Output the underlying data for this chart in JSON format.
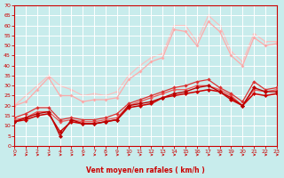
{
  "bg_color": "#c8ecec",
  "grid_color": "#ffffff",
  "xlabel": "Vent moyen/en rafales ( km/h )",
  "xlabel_color": "#cc0000",
  "tick_color": "#cc0000",
  "ylim": [
    0,
    70
  ],
  "xlim": [
    0,
    23
  ],
  "yticks": [
    0,
    5,
    10,
    15,
    20,
    25,
    30,
    35,
    40,
    45,
    50,
    55,
    60,
    65,
    70
  ],
  "xticks": [
    0,
    1,
    2,
    3,
    4,
    5,
    6,
    7,
    8,
    9,
    10,
    11,
    12,
    13,
    14,
    15,
    16,
    17,
    18,
    19,
    20,
    21,
    22,
    23
  ],
  "lines": [
    {
      "x": [
        0,
        1,
        2,
        3,
        4,
        5,
        6,
        7,
        8,
        9,
        10,
        11,
        12,
        13,
        14,
        15,
        16,
        17,
        18,
        19,
        20,
        21,
        22,
        23
      ],
      "y": [
        20,
        25,
        30,
        35,
        30,
        28,
        25,
        26,
        25,
        27,
        35,
        40,
        44,
        46,
        60,
        60,
        52,
        65,
        60,
        47,
        42,
        56,
        52,
        52
      ],
      "color": "#ffbbbb",
      "linewidth": 0.8,
      "markersize": 2.0,
      "zorder": 1
    },
    {
      "x": [
        0,
        1,
        2,
        3,
        4,
        5,
        6,
        7,
        8,
        9,
        10,
        11,
        12,
        13,
        14,
        15,
        16,
        17,
        18,
        19,
        20,
        21,
        22,
        23
      ],
      "y": [
        20,
        22,
        28,
        34,
        25,
        25,
        22,
        23,
        23,
        24,
        33,
        37,
        42,
        44,
        58,
        57,
        50,
        62,
        57,
        45,
        40,
        54,
        50,
        51
      ],
      "color": "#ffaaaa",
      "linewidth": 0.9,
      "markersize": 2.0,
      "zorder": 2
    },
    {
      "x": [
        0,
        1,
        2,
        3,
        4,
        5,
        6,
        7,
        8,
        9,
        10,
        11,
        12,
        13,
        14,
        15,
        16,
        17,
        18,
        19,
        20,
        21,
        22,
        23
      ],
      "y": [
        13,
        14,
        17,
        17,
        12,
        13,
        12,
        12,
        13,
        14,
        20,
        22,
        24,
        26,
        28,
        28,
        30,
        30,
        28,
        25,
        20,
        28,
        27,
        28
      ],
      "color": "#ee5555",
      "linewidth": 0.9,
      "markersize": 2.2,
      "zorder": 3
    },
    {
      "x": [
        0,
        1,
        2,
        3,
        4,
        5,
        6,
        7,
        8,
        9,
        10,
        11,
        12,
        13,
        14,
        15,
        16,
        17,
        18,
        19,
        20,
        21,
        22,
        23
      ],
      "y": [
        14,
        16,
        19,
        19,
        13,
        14,
        13,
        13,
        14,
        16,
        21,
        23,
        25,
        27,
        29,
        30,
        32,
        33,
        29,
        26,
        22,
        32,
        28,
        29
      ],
      "color": "#dd3333",
      "linewidth": 0.9,
      "markersize": 2.2,
      "zorder": 4
    },
    {
      "x": [
        0,
        1,
        2,
        3,
        4,
        5,
        6,
        7,
        8,
        9,
        10,
        11,
        12,
        13,
        14,
        15,
        16,
        17,
        18,
        19,
        20,
        21,
        22,
        23
      ],
      "y": [
        12,
        13,
        15,
        16,
        7,
        12,
        11,
        11,
        12,
        13,
        19,
        20,
        21,
        24,
        25,
        26,
        27,
        28,
        27,
        23,
        20,
        26,
        25,
        26
      ],
      "color": "#cc0000",
      "linewidth": 1.1,
      "markersize": 2.5,
      "zorder": 5
    },
    {
      "x": [
        0,
        1,
        2,
        3,
        4,
        5,
        6,
        7,
        8,
        9,
        10,
        11,
        12,
        13,
        14,
        15,
        16,
        17,
        18,
        19,
        20,
        21,
        22,
        23
      ],
      "y": [
        12,
        14,
        16,
        17,
        5,
        13,
        11,
        11,
        12,
        13,
        20,
        21,
        22,
        24,
        26,
        27,
        29,
        30,
        27,
        24,
        20,
        29,
        27,
        27
      ],
      "color": "#bb0000",
      "linewidth": 1.0,
      "markersize": 2.5,
      "zorder": 6
    }
  ]
}
